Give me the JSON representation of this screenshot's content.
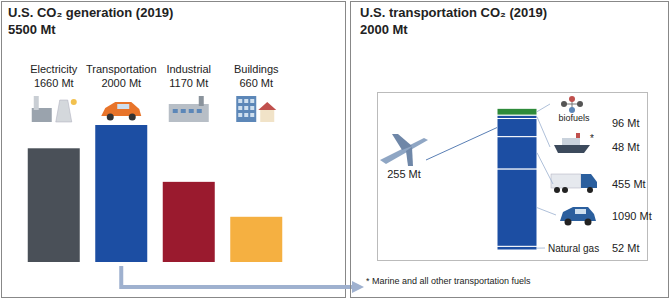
{
  "chart_data": [
    {
      "type": "bar",
      "title": "U.S. CO₂ generation (2019)",
      "subtitle": "5500 Mt",
      "categories": [
        "Electricity",
        "Transportation",
        "Industrial",
        "Buildings"
      ],
      "values": [
        1660,
        2000,
        1170,
        660
      ],
      "value_labels": [
        "1660 Mt",
        "2000 Mt",
        "1170 Mt",
        "660 Mt"
      ],
      "colors": [
        "#4a5058",
        "#1c4ea3",
        "#9a1a2e",
        "#f5b041"
      ],
      "ylim": [
        0,
        2000
      ],
      "tick_labels": false,
      "data_labels": true
    },
    {
      "type": "bar",
      "stacked": true,
      "title": "U.S. transportation CO₂ (2019)",
      "subtitle": "2000 Mt",
      "categories": [
        null
      ],
      "ylim": [
        0,
        2000
      ],
      "tick_labels": false,
      "data_labels": true,
      "series": [
        {
          "name": "Natural gas",
          "color": "#1c4ea3",
          "values": [
            52
          ],
          "value_labels": [
            "52 Mt"
          ]
        },
        {
          "color": "#1c4ea3",
          "values": [
            1090
          ],
          "value_labels": [
            "1090 Mt"
          ]
        },
        {
          "color": "#1c4ea3",
          "values": [
            455
          ],
          "value_labels": [
            "455 Mt"
          ]
        },
        {
          "color": "#1c4ea3",
          "values": [
            255
          ],
          "value_labels": [
            "255 Mt"
          ]
        },
        {
          "name": "*",
          "color": "#1c4ea3",
          "values": [
            48
          ],
          "value_labels": [
            "48 Mt"
          ]
        },
        {
          "name": "biofuels",
          "color": "#2e8b3a",
          "values": [
            96
          ],
          "value_labels": [
            "96 Mt"
          ]
        }
      ],
      "annotations": [
        "* Marine and all other transportation fuels"
      ]
    }
  ]
}
